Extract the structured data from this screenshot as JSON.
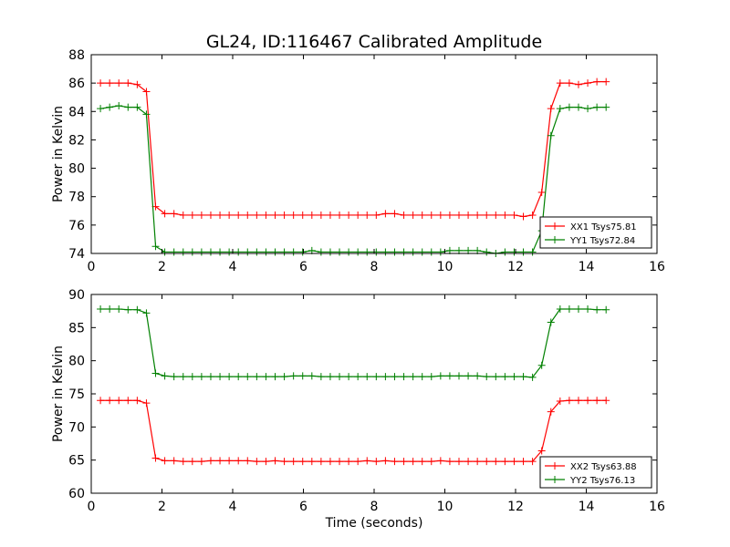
{
  "figure": {
    "title": "GL24, ID:116467 Calibrated Amplitude"
  },
  "chart_data": [
    {
      "type": "line",
      "title": "GL24, ID:116467 Calibrated Amplitude",
      "xlabel": "",
      "ylabel": "Power in Kelvin",
      "xlim": [
        0,
        16
      ],
      "ylim": [
        74,
        88
      ],
      "xticks": [
        "0",
        "2",
        "4",
        "6",
        "8",
        "10",
        "12",
        "14",
        "16"
      ],
      "yticks": [
        "74",
        "76",
        "78",
        "80",
        "82",
        "84",
        "86",
        "88"
      ],
      "grid": false,
      "legend_position": "lower-right",
      "x": [
        0.26,
        0.52,
        0.78,
        1.04,
        1.3,
        1.56,
        1.82,
        2.08,
        2.34,
        2.6,
        2.86,
        3.12,
        3.38,
        3.64,
        3.9,
        4.16,
        4.42,
        4.68,
        4.94,
        5.2,
        5.46,
        5.72,
        5.98,
        6.24,
        6.5,
        6.76,
        7.02,
        7.28,
        7.54,
        7.8,
        8.06,
        8.32,
        8.58,
        8.84,
        9.1,
        9.36,
        9.62,
        9.88,
        10.14,
        10.4,
        10.66,
        10.92,
        11.18,
        11.44,
        11.7,
        11.96,
        12.22,
        12.48,
        12.74,
        13.0,
        13.26,
        13.52,
        13.78,
        14.04,
        14.3,
        14.56
      ],
      "series": [
        {
          "name": "XX1 Tsys75.81",
          "color": "#ff0000",
          "values": [
            86.0,
            86.0,
            86.0,
            86.0,
            85.9,
            85.4,
            77.3,
            76.8,
            76.8,
            76.7,
            76.7,
            76.7,
            76.7,
            76.7,
            76.7,
            76.7,
            76.7,
            76.7,
            76.7,
            76.7,
            76.7,
            76.7,
            76.7,
            76.7,
            76.7,
            76.7,
            76.7,
            76.7,
            76.7,
            76.7,
            76.7,
            76.8,
            76.8,
            76.7,
            76.7,
            76.7,
            76.7,
            76.7,
            76.7,
            76.7,
            76.7,
            76.7,
            76.7,
            76.7,
            76.7,
            76.7,
            76.6,
            76.7,
            78.3,
            84.2,
            86.0,
            86.0,
            85.9,
            86.0,
            86.1,
            86.1
          ]
        },
        {
          "name": "YY1 Tsys72.84",
          "color": "#008000",
          "values": [
            84.2,
            84.3,
            84.4,
            84.3,
            84.3,
            83.8,
            74.5,
            74.1,
            74.1,
            74.1,
            74.1,
            74.1,
            74.1,
            74.1,
            74.1,
            74.1,
            74.1,
            74.1,
            74.1,
            74.1,
            74.1,
            74.1,
            74.1,
            74.2,
            74.1,
            74.1,
            74.1,
            74.1,
            74.1,
            74.1,
            74.1,
            74.1,
            74.1,
            74.1,
            74.1,
            74.1,
            74.1,
            74.1,
            74.2,
            74.2,
            74.2,
            74.2,
            74.1,
            74.0,
            74.1,
            74.1,
            74.1,
            74.1,
            75.6,
            82.3,
            84.2,
            84.3,
            84.3,
            84.2,
            84.3,
            84.3
          ]
        }
      ]
    },
    {
      "type": "line",
      "title": "",
      "xlabel": "Time (seconds)",
      "ylabel": "Power in Kelvin",
      "xlim": [
        0,
        16
      ],
      "ylim": [
        60,
        90
      ],
      "xticks": [
        "0",
        "2",
        "4",
        "6",
        "8",
        "10",
        "12",
        "14",
        "16"
      ],
      "yticks": [
        "60",
        "65",
        "70",
        "75",
        "80",
        "85",
        "90"
      ],
      "grid": false,
      "legend_position": "lower-right",
      "x": [
        0.26,
        0.52,
        0.78,
        1.04,
        1.3,
        1.56,
        1.82,
        2.08,
        2.34,
        2.6,
        2.86,
        3.12,
        3.38,
        3.64,
        3.9,
        4.16,
        4.42,
        4.68,
        4.94,
        5.2,
        5.46,
        5.72,
        5.98,
        6.24,
        6.5,
        6.76,
        7.02,
        7.28,
        7.54,
        7.8,
        8.06,
        8.32,
        8.58,
        8.84,
        9.1,
        9.36,
        9.62,
        9.88,
        10.14,
        10.4,
        10.66,
        10.92,
        11.18,
        11.44,
        11.7,
        11.96,
        12.22,
        12.48,
        12.74,
        13.0,
        13.26,
        13.52,
        13.78,
        14.04,
        14.3,
        14.56
      ],
      "series": [
        {
          "name": "XX2 Tsys63.88",
          "color": "#ff0000",
          "values": [
            74.0,
            74.0,
            74.0,
            74.0,
            74.0,
            73.6,
            65.3,
            64.9,
            64.9,
            64.8,
            64.8,
            64.8,
            64.9,
            64.9,
            64.9,
            64.9,
            64.9,
            64.8,
            64.8,
            64.9,
            64.8,
            64.8,
            64.8,
            64.8,
            64.8,
            64.8,
            64.8,
            64.8,
            64.8,
            64.9,
            64.8,
            64.9,
            64.8,
            64.8,
            64.8,
            64.8,
            64.8,
            64.9,
            64.8,
            64.8,
            64.8,
            64.8,
            64.8,
            64.8,
            64.8,
            64.8,
            64.8,
            64.8,
            66.4,
            72.3,
            73.9,
            74.0,
            74.0,
            74.0,
            74.0,
            74.0
          ]
        },
        {
          "name": "YY2 Tsys76.13",
          "color": "#008000",
          "values": [
            87.8,
            87.8,
            87.8,
            87.7,
            87.7,
            87.2,
            78.1,
            77.7,
            77.6,
            77.6,
            77.6,
            77.6,
            77.6,
            77.6,
            77.6,
            77.6,
            77.6,
            77.6,
            77.6,
            77.6,
            77.6,
            77.7,
            77.7,
            77.7,
            77.6,
            77.6,
            77.6,
            77.6,
            77.6,
            77.6,
            77.6,
            77.6,
            77.6,
            77.6,
            77.6,
            77.6,
            77.6,
            77.7,
            77.7,
            77.7,
            77.7,
            77.7,
            77.6,
            77.6,
            77.6,
            77.6,
            77.6,
            77.5,
            79.3,
            85.8,
            87.8,
            87.8,
            87.8,
            87.8,
            87.7,
            87.7
          ]
        }
      ]
    }
  ]
}
